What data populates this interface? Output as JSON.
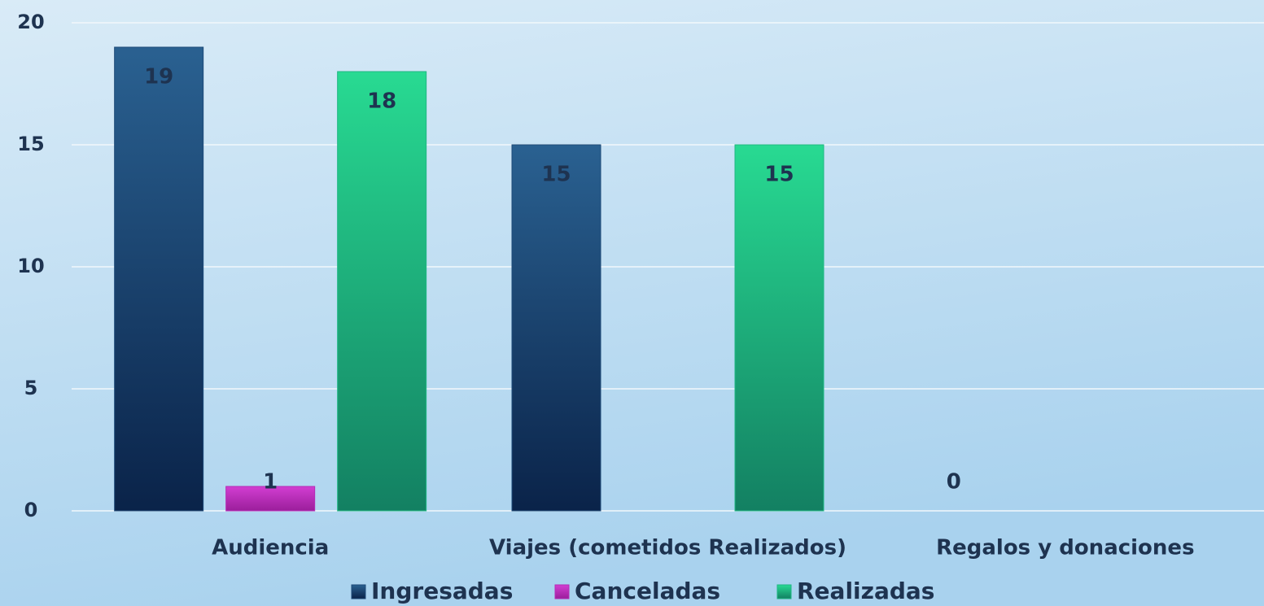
{
  "chart_data": {
    "type": "bar",
    "categories": [
      "Audiencia",
      "Viajes (cometidos Realizados)",
      "Regalos y donaciones"
    ],
    "series": [
      {
        "name": "Ingresadas",
        "color": "#1d4a78",
        "values": [
          19,
          15,
          0
        ]
      },
      {
        "name": "Canceladas",
        "color": "#b52bb5",
        "values": [
          1,
          null,
          null
        ]
      },
      {
        "name": "Realizadas",
        "color": "#1fb783",
        "values": [
          18,
          15,
          null
        ]
      }
    ],
    "ylim": [
      0,
      20
    ],
    "yticks": [
      0,
      5,
      10,
      15,
      20
    ],
    "grid": true,
    "legend": "bottom"
  }
}
